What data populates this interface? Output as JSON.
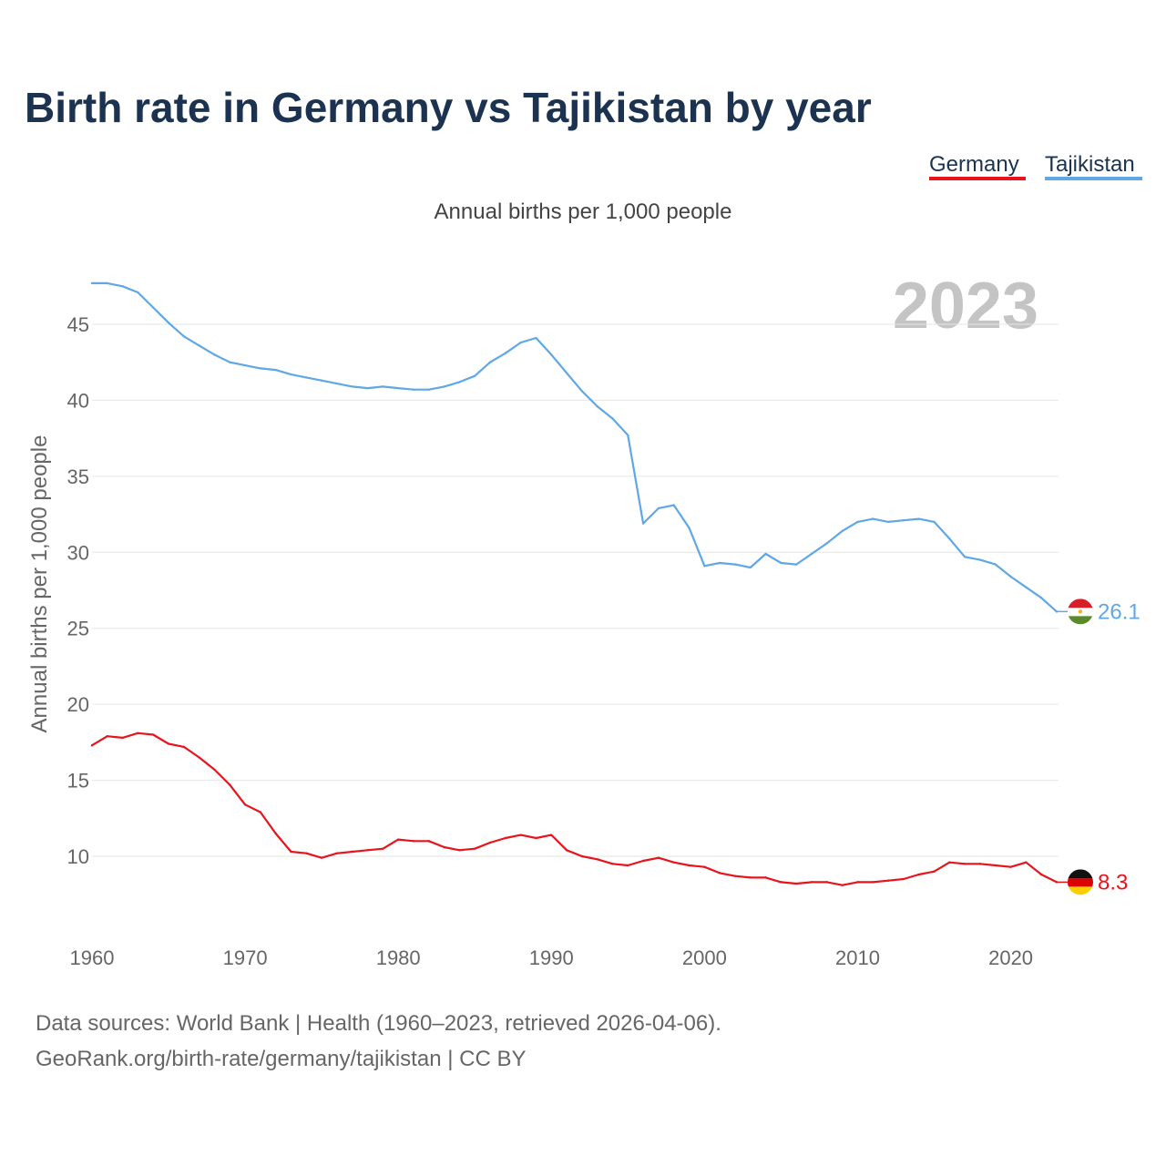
{
  "chart_data": {
    "type": "line",
    "title": "Birth rate in Germany vs Tajikistan by year",
    "subtitle": "Annual births per 1,000 people",
    "ylabel": "Annual births per 1,000 people",
    "xlabel": "",
    "highlight_year": "2023",
    "xlim": [
      1960,
      2023
    ],
    "ylim": [
      7,
      48
    ],
    "x_ticks": [
      1960,
      1970,
      1980,
      1990,
      2000,
      2010,
      2020
    ],
    "y_ticks": [
      10,
      15,
      20,
      25,
      30,
      35,
      40,
      45
    ],
    "grid": true,
    "legend_position": "top-right",
    "x": [
      1960,
      1961,
      1962,
      1963,
      1964,
      1965,
      1966,
      1967,
      1968,
      1969,
      1970,
      1971,
      1972,
      1973,
      1974,
      1975,
      1976,
      1977,
      1978,
      1979,
      1980,
      1981,
      1982,
      1983,
      1984,
      1985,
      1986,
      1987,
      1988,
      1989,
      1990,
      1991,
      1992,
      1993,
      1994,
      1995,
      1996,
      1997,
      1998,
      1999,
      2000,
      2001,
      2002,
      2003,
      2004,
      2005,
      2006,
      2007,
      2008,
      2009,
      2010,
      2011,
      2012,
      2013,
      2014,
      2015,
      2016,
      2017,
      2018,
      2019,
      2020,
      2021,
      2022,
      2023
    ],
    "series": [
      {
        "name": "Germany",
        "color": "#e8141c",
        "end_label": "8.3",
        "values": [
          17.3,
          17.9,
          17.8,
          18.1,
          18.0,
          17.4,
          17.2,
          16.5,
          15.7,
          14.7,
          13.4,
          12.9,
          11.5,
          10.3,
          10.2,
          9.9,
          10.2,
          10.3,
          10.4,
          10.5,
          11.1,
          11.0,
          11.0,
          10.6,
          10.4,
          10.5,
          10.9,
          11.2,
          11.4,
          11.2,
          11.4,
          10.4,
          10.0,
          9.8,
          9.5,
          9.4,
          9.7,
          9.9,
          9.6,
          9.4,
          9.3,
          8.9,
          8.7,
          8.6,
          8.6,
          8.3,
          8.2,
          8.3,
          8.3,
          8.1,
          8.3,
          8.3,
          8.4,
          8.5,
          8.8,
          9.0,
          9.6,
          9.5,
          9.5,
          9.4,
          9.3,
          9.6,
          8.8,
          8.3
        ]
      },
      {
        "name": "Tajikistan",
        "color": "#5fa7e6",
        "end_label": "26.1",
        "values": [
          47.7,
          47.7,
          47.5,
          47.1,
          46.1,
          45.1,
          44.2,
          43.6,
          43.0,
          42.5,
          42.3,
          42.1,
          42.0,
          41.7,
          41.5,
          41.3,
          41.1,
          40.9,
          40.8,
          40.9,
          40.8,
          40.7,
          40.7,
          40.9,
          41.2,
          41.6,
          42.5,
          43.1,
          43.8,
          44.1,
          43.0,
          41.8,
          40.6,
          39.6,
          38.8,
          37.7,
          31.9,
          32.9,
          33.1,
          31.6,
          29.1,
          29.3,
          29.2,
          29.0,
          29.9,
          29.3,
          29.2,
          29.9,
          30.6,
          31.4,
          32.0,
          32.2,
          32.0,
          32.1,
          32.2,
          32.0,
          30.9,
          29.7,
          29.5,
          29.2,
          28.4,
          27.7,
          27.0,
          26.1
        ]
      }
    ],
    "footer_lines": [
      "Data sources: World Bank | Health (1960–2023, retrieved 2026-04-06).",
      "GeoRank.org/birth-rate/germany/tajikistan | CC BY"
    ]
  }
}
